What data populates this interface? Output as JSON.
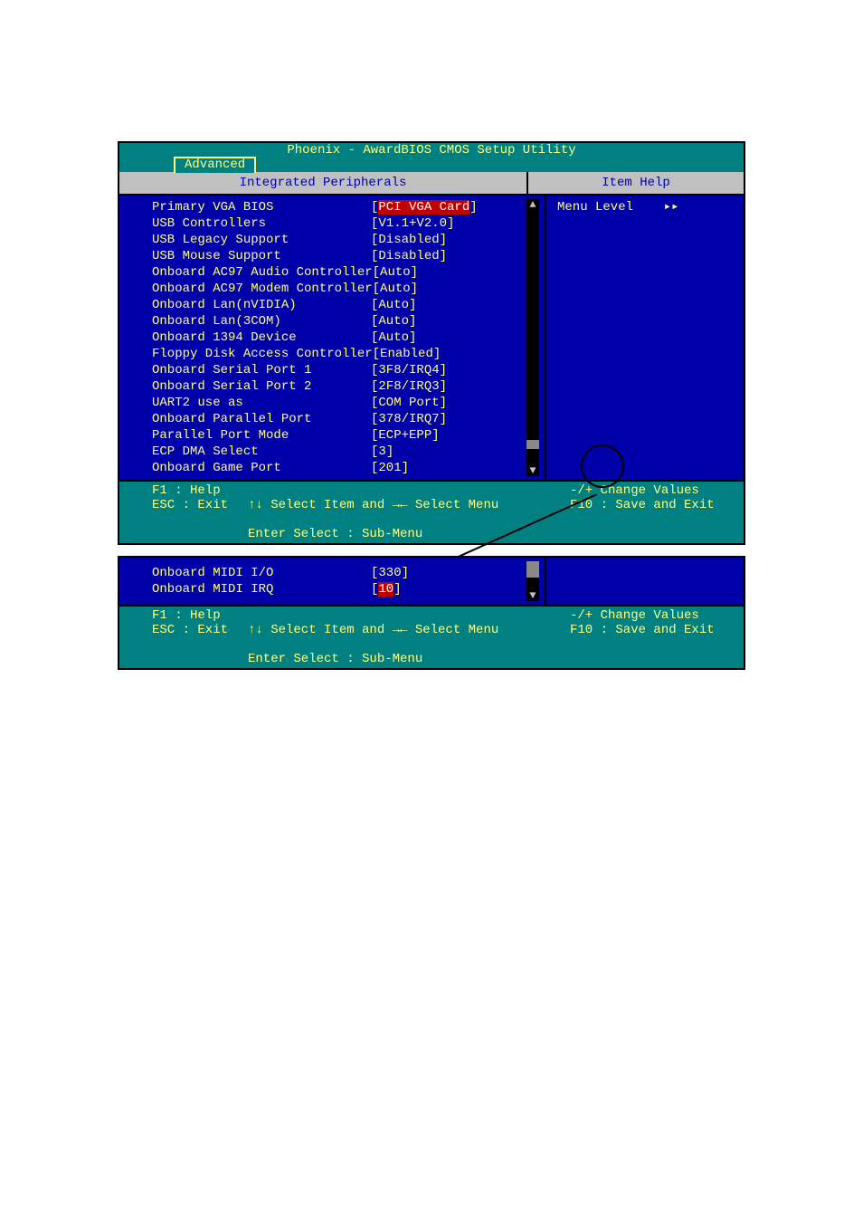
{
  "bios": {
    "title": "Phoenix - AwardBIOS CMOS Setup Utility",
    "tab": "Advanced",
    "panel_title_left": "Integrated Peripherals",
    "panel_title_right": "Item Help",
    "menu_level_label": "Menu Level",
    "menu_level_arrows": "▸▸",
    "settings": [
      {
        "label": "Primary VGA BIOS",
        "value": "PCI VGA Card",
        "selected": true
      },
      {
        "label": "USB Controllers",
        "value": "V1.1+V2.0"
      },
      {
        "label": "USB Legacy Support",
        "value": "Disabled"
      },
      {
        "label": "USB Mouse Support",
        "value": "Disabled"
      },
      {
        "label": "Onboard AC97 Audio Controller",
        "value": "Auto"
      },
      {
        "label": "Onboard AC97 Modem Controller",
        "value": "Auto"
      },
      {
        "label": "Onboard Lan(nVIDIA)",
        "value": "Auto"
      },
      {
        "label": "Onboard Lan(3COM)",
        "value": "Auto"
      },
      {
        "label": "Onboard 1394 Device",
        "value": "Auto"
      },
      {
        "label": "Floppy Disk Access Controller",
        "value": "Enabled"
      },
      {
        "label": "Onboard Serial Port 1",
        "value": "3F8/IRQ4"
      },
      {
        "label": "Onboard Serial Port 2",
        "value": "2F8/IRQ3"
      },
      {
        "label": "UART2 use as",
        "value": "COM Port"
      },
      {
        "label": "Onboard Parallel Port",
        "value": "378/IRQ7"
      },
      {
        "label": "Parallel Port Mode",
        "value": "ECP+EPP"
      },
      {
        "label": "ECP DMA Select",
        "value": "3"
      },
      {
        "label": "Onboard Game Port",
        "value": "201"
      }
    ],
    "settings_scroll": [
      {
        "label": "Onboard MIDI I/O",
        "value": "330"
      },
      {
        "label": "Onboard MIDI IRQ",
        "value": "10",
        "selected": true
      }
    ],
    "footer_left": "F1  : Help\nESC : Exit",
    "footer_mid_line1": "↑↓ Select Item and →← Select Menu",
    "footer_mid_line2": "Enter Select : Sub-Menu",
    "footer_right": "-/+ Change Values\nF10 : Save and Exit",
    "colors": {
      "title_bg": "#008080",
      "body_bg": "#0000a8",
      "header_bg": "#c0c0c0",
      "text_yellow": "#ffff7f",
      "text_blue": "#0000a8",
      "selected_bg": "#c00000",
      "selected_fg": "#ffffff"
    }
  }
}
